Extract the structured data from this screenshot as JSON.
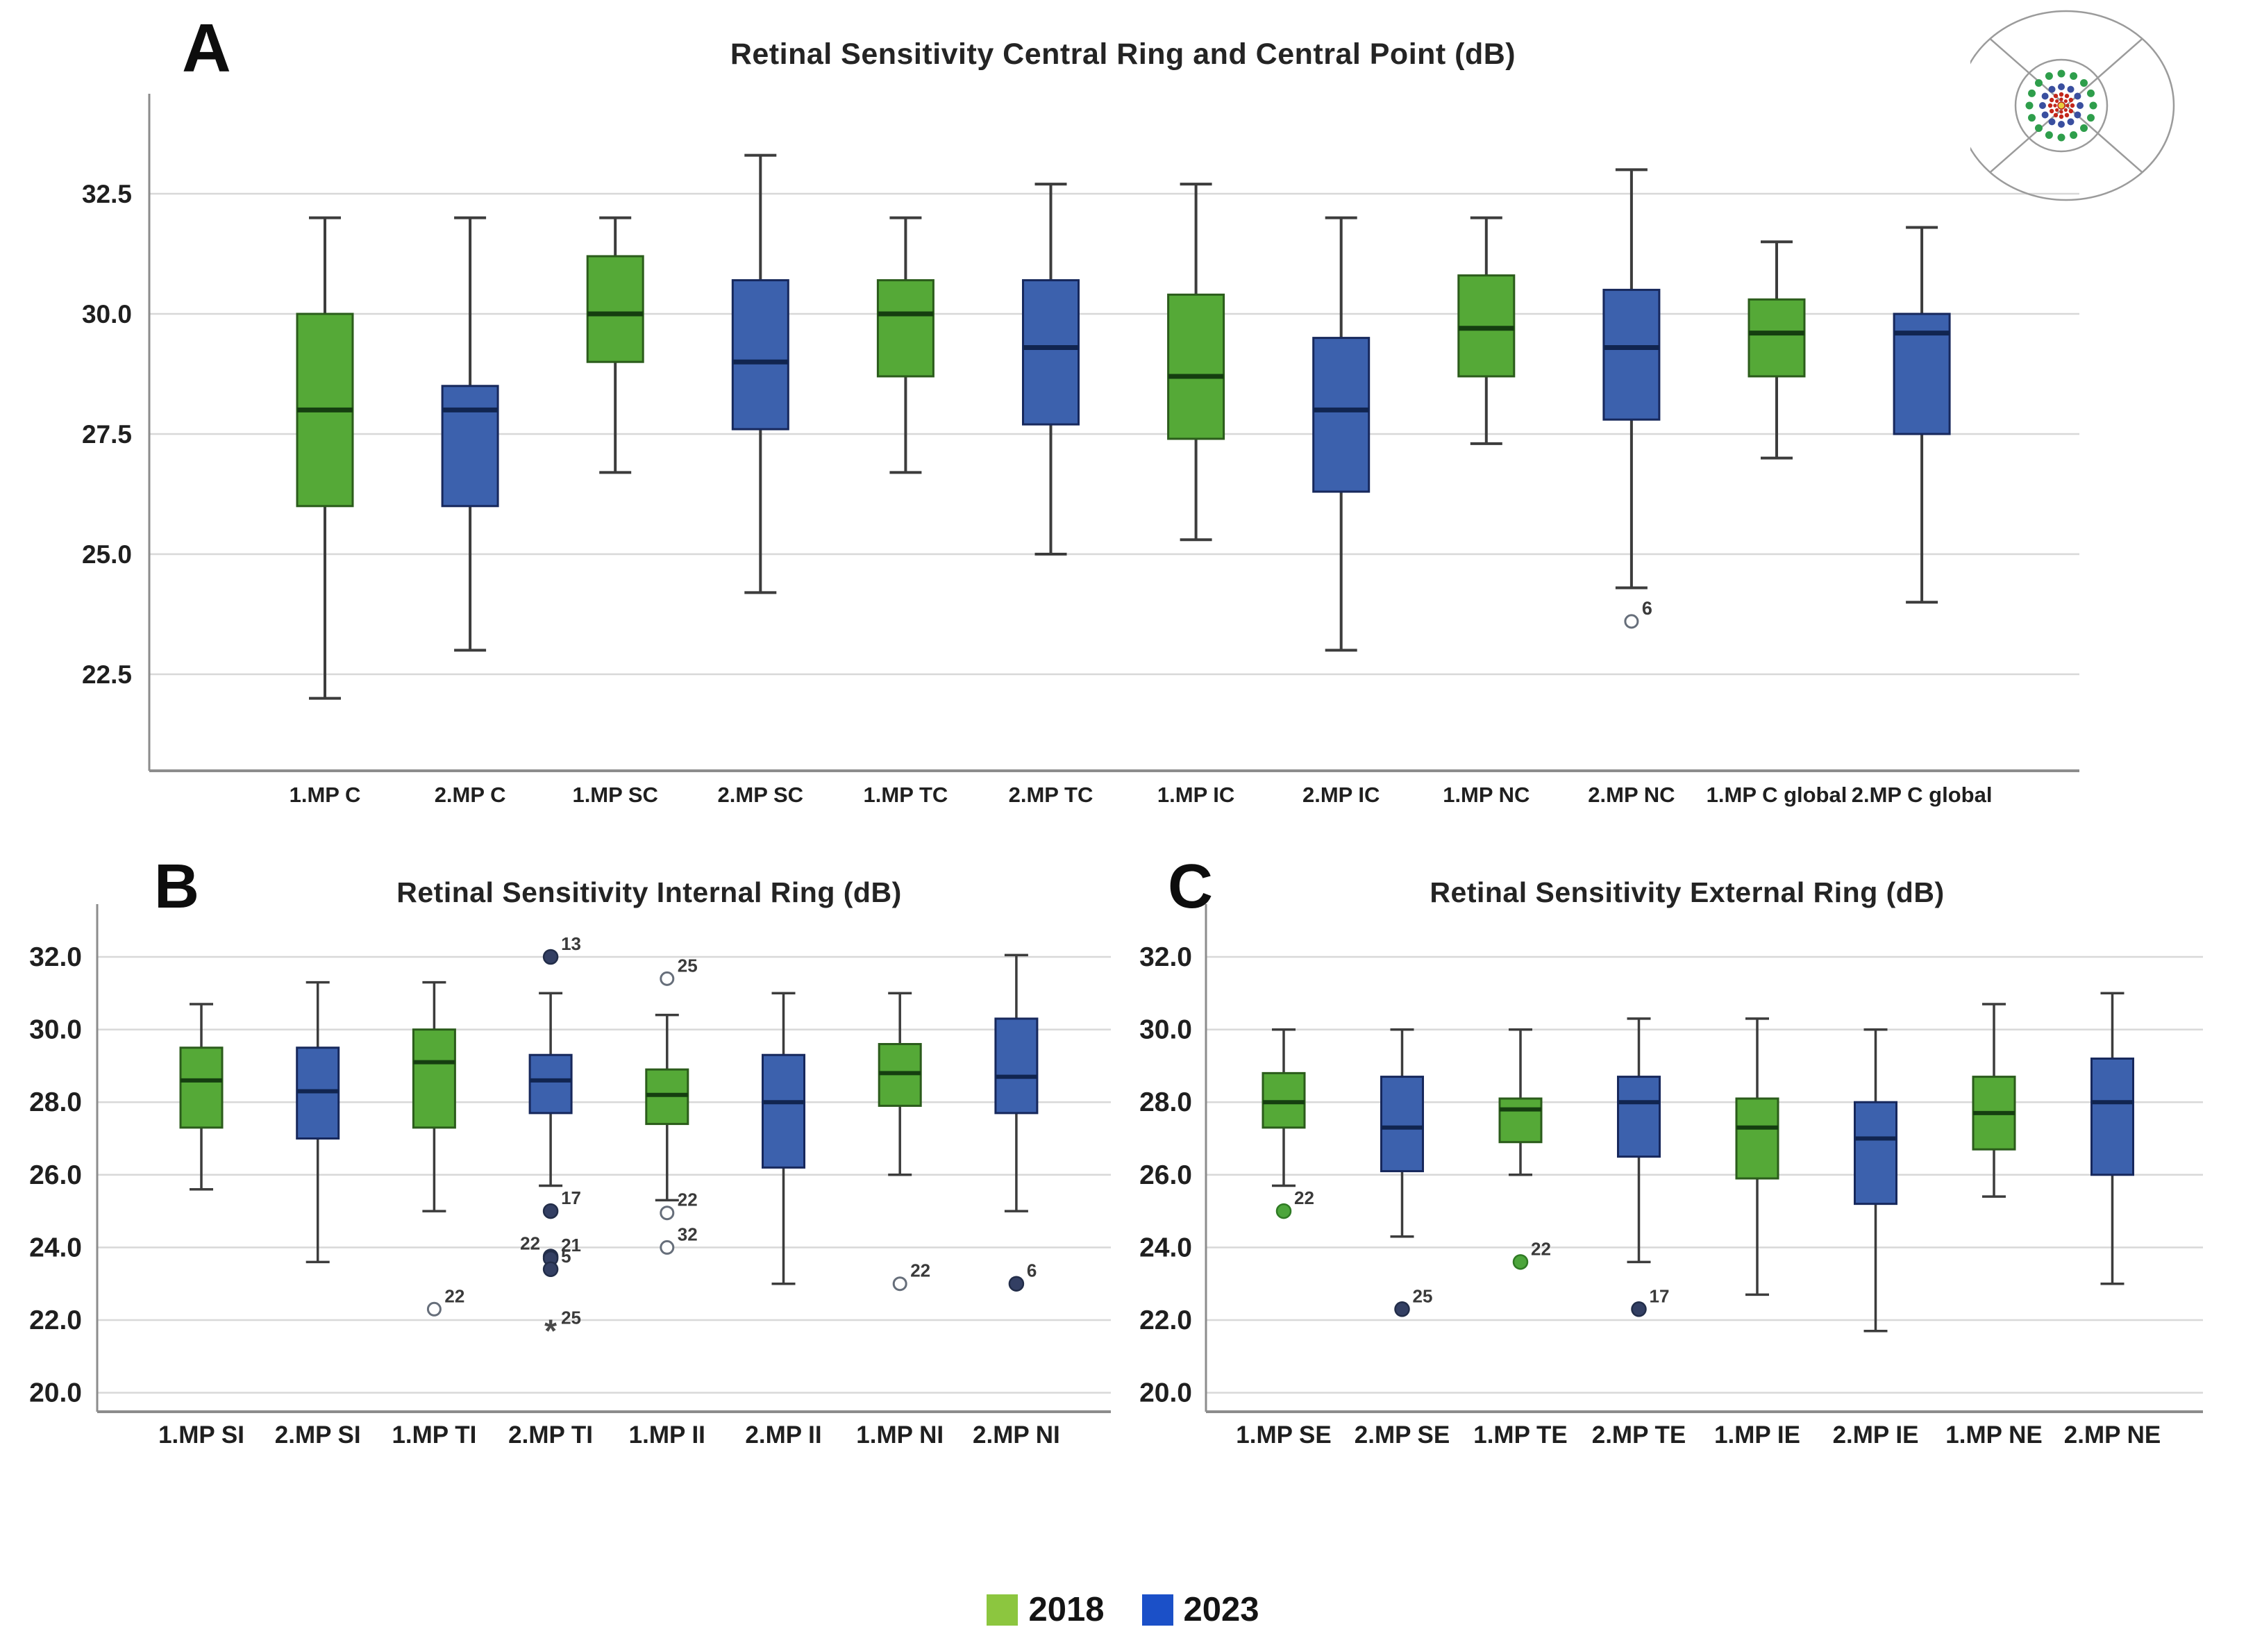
{
  "figure": {
    "background": "#ffffff"
  },
  "legend": {
    "position": "bottom-center",
    "items": [
      {
        "label": "2018",
        "color": "#8CC63F",
        "series_key": "2018"
      },
      {
        "label": "2023",
        "color": "#1B50C8",
        "series_key": "2023"
      }
    ]
  },
  "colors": {
    "series": {
      "2018": {
        "box_fill": "#55A937",
        "box_stroke": "#2B5C1B",
        "median": "#153E10",
        "outlier_fill": "#4CA53B",
        "outlier_stroke": "#2F7A24"
      },
      "2023": {
        "box_fill": "#3C61AD",
        "box_stroke": "#17285C",
        "median": "#112550",
        "outlier_fill": "#333F63",
        "outlier_stroke": "#222D49"
      }
    },
    "whisker": "#3C3C3C",
    "gridline": "#D8D8D8",
    "axis": "#8C8C8C",
    "tick_text": "#1F1F1F",
    "outlier_open_stroke": "#666E7A",
    "outlier_label": "#3A3A3A"
  },
  "inset": {
    "description": "macular-perimetry-stimulus-grid",
    "outline_color": "#9B9B9B",
    "grid_rings": [
      {
        "color": "#2E9E4B",
        "count": 16
      },
      {
        "color": "#3A4F9F",
        "count": 12
      },
      {
        "color": "#C3271B",
        "count": 12
      },
      {
        "color": "#C3271B",
        "count": 8
      }
    ],
    "center": {
      "color": "#E8CF3D",
      "ring_color": "#C3271B"
    }
  },
  "chart_data": [
    {
      "type": "boxplot",
      "panel_label": "A",
      "title": "Retinal Sensitivity Central Ring and Central Point (dB)",
      "y_unit": "dB",
      "ylim": [
        20.5,
        34.5
      ],
      "grid": true,
      "legend_groups": [
        "2018",
        "2023"
      ],
      "y_ticks": [
        {
          "value": 32.5,
          "label": "32.5"
        },
        {
          "value": 30.0,
          "label": "30.0"
        },
        {
          "value": 27.5,
          "label": "27.5"
        },
        {
          "value": 25.0,
          "label": "25.0"
        },
        {
          "value": 22.5,
          "label": "22.5"
        }
      ],
      "boxes": [
        {
          "category": "1.MP C",
          "group": "2018",
          "whisker_low": 22.0,
          "q1": 26.0,
          "median": 28.0,
          "q3": 30.0,
          "whisker_high": 32.0,
          "outliers": []
        },
        {
          "category": "2.MP C",
          "group": "2023",
          "whisker_low": 23.0,
          "q1": 26.0,
          "median": 28.0,
          "q3": 28.5,
          "whisker_high": 32.0,
          "outliers": []
        },
        {
          "category": "1.MP SC",
          "group": "2018",
          "whisker_low": 26.7,
          "q1": 29.0,
          "median": 30.0,
          "q3": 31.2,
          "whisker_high": 32.0,
          "outliers": []
        },
        {
          "category": "2.MP SC",
          "group": "2023",
          "whisker_low": 24.2,
          "q1": 27.6,
          "median": 29.0,
          "q3": 30.7,
          "whisker_high": 33.3,
          "outliers": []
        },
        {
          "category": "1.MP TC",
          "group": "2018",
          "whisker_low": 26.7,
          "q1": 28.7,
          "median": 30.0,
          "q3": 30.7,
          "whisker_high": 32.0,
          "outliers": []
        },
        {
          "category": "2.MP TC",
          "group": "2023",
          "whisker_low": 25.0,
          "q1": 27.7,
          "median": 29.3,
          "q3": 30.7,
          "whisker_high": 32.7,
          "outliers": []
        },
        {
          "category": "1.MP IC",
          "group": "2018",
          "whisker_low": 25.3,
          "q1": 27.4,
          "median": 28.7,
          "q3": 30.4,
          "whisker_high": 32.7,
          "outliers": []
        },
        {
          "category": "2.MP IC",
          "group": "2023",
          "whisker_low": 23.0,
          "q1": 26.3,
          "median": 28.0,
          "q3": 29.5,
          "whisker_high": 32.0,
          "outliers": []
        },
        {
          "category": "1.MP NC",
          "group": "2018",
          "whisker_low": 27.3,
          "q1": 28.7,
          "median": 29.7,
          "q3": 30.8,
          "whisker_high": 32.0,
          "outliers": []
        },
        {
          "category": "2.MP NC",
          "group": "2023",
          "whisker_low": 24.3,
          "q1": 27.8,
          "median": 29.3,
          "q3": 30.5,
          "whisker_high": 33.0,
          "outliers": [
            {
              "value": 23.6,
              "case": "6",
              "glyph": "open-circle",
              "side": "right"
            }
          ]
        },
        {
          "category": "1.MP C global",
          "group": "2018",
          "whisker_low": 27.0,
          "q1": 28.7,
          "median": 29.6,
          "q3": 30.3,
          "whisker_high": 31.5,
          "outliers": []
        },
        {
          "category": "2.MP C global",
          "group": "2023",
          "whisker_low": 24.0,
          "q1": 27.5,
          "median": 29.6,
          "q3": 30.0,
          "whisker_high": 31.8,
          "outliers": []
        }
      ]
    },
    {
      "type": "boxplot",
      "panel_label": "B",
      "title": "Retinal Sensitivity Internal Ring (dB)",
      "y_unit": "dB",
      "ylim": [
        19.4,
        33.0
      ],
      "grid": true,
      "legend_groups": [
        "2018",
        "2023"
      ],
      "y_ticks": [
        {
          "value": 32.0,
          "label": "32.0"
        },
        {
          "value": 30.0,
          "label": "30.0"
        },
        {
          "value": 28.0,
          "label": "28.0"
        },
        {
          "value": 26.0,
          "label": "26.0"
        },
        {
          "value": 24.0,
          "label": "24.0"
        },
        {
          "value": 22.0,
          "label": "22.0"
        },
        {
          "value": 20.0,
          "label": "20.0"
        }
      ],
      "boxes": [
        {
          "category": "1.MP SI",
          "group": "2018",
          "whisker_low": 25.6,
          "q1": 27.3,
          "median": 28.6,
          "q3": 29.5,
          "whisker_high": 30.7,
          "outliers": []
        },
        {
          "category": "2.MP SI",
          "group": "2023",
          "whisker_low": 23.6,
          "q1": 27.0,
          "median": 28.3,
          "q3": 29.5,
          "whisker_high": 31.3,
          "outliers": []
        },
        {
          "category": "1.MP TI",
          "group": "2018",
          "whisker_low": 25.0,
          "q1": 27.3,
          "median": 29.1,
          "q3": 30.0,
          "whisker_high": 31.3,
          "outliers": [
            {
              "value": 22.3,
              "case": "22",
              "glyph": "open-circle",
              "side": "right"
            }
          ]
        },
        {
          "category": "2.MP TI",
          "group": "2023",
          "whisker_low": 25.7,
          "q1": 27.7,
          "median": 28.6,
          "q3": 29.3,
          "whisker_high": 31.0,
          "outliers": [
            {
              "value": 32.0,
              "case": "13",
              "glyph": "filled-dot",
              "side": "right"
            },
            {
              "value": 25.0,
              "case": "17",
              "glyph": "filled-dot",
              "side": "right"
            },
            {
              "value": 23.75,
              "case": "22",
              "glyph": "filled-dot",
              "side": "left"
            },
            {
              "value": 23.7,
              "case": "21",
              "glyph": "filled-dot",
              "side": "right"
            },
            {
              "value": 23.4,
              "case": "5",
              "glyph": "filled-dot",
              "side": "right"
            },
            {
              "value": 21.7,
              "case": "25",
              "glyph": "star",
              "side": "right"
            }
          ]
        },
        {
          "category": "1.MP II",
          "group": "2018",
          "whisker_low": 25.3,
          "q1": 27.4,
          "median": 28.2,
          "q3": 28.9,
          "whisker_high": 30.4,
          "outliers": [
            {
              "value": 31.4,
              "case": "25",
              "glyph": "open-circle",
              "side": "right"
            },
            {
              "value": 24.95,
              "case": "22",
              "glyph": "open-circle",
              "side": "right"
            },
            {
              "value": 24.0,
              "case": "32",
              "glyph": "open-circle",
              "side": "right"
            }
          ]
        },
        {
          "category": "2.MP II",
          "group": "2023",
          "whisker_low": 23.0,
          "q1": 26.2,
          "median": 28.0,
          "q3": 29.3,
          "whisker_high": 31.0,
          "outliers": []
        },
        {
          "category": "1.MP NI",
          "group": "2018",
          "whisker_low": 26.0,
          "q1": 27.9,
          "median": 28.8,
          "q3": 29.6,
          "whisker_high": 31.0,
          "outliers": [
            {
              "value": 23.0,
              "case": "22",
              "glyph": "open-circle",
              "side": "right"
            }
          ]
        },
        {
          "category": "2.MP NI",
          "group": "2023",
          "whisker_low": 25.0,
          "q1": 27.7,
          "median": 28.7,
          "q3": 30.3,
          "whisker_high": 32.05,
          "outliers": [
            {
              "value": 23.0,
              "case": "6",
              "glyph": "filled-dot",
              "side": "right"
            }
          ]
        }
      ]
    },
    {
      "type": "boxplot",
      "panel_label": "C",
      "title": "Retinal Sensitivity External Ring (dB)",
      "y_unit": "dB",
      "ylim": [
        19.4,
        33.0
      ],
      "grid": true,
      "legend_groups": [
        "2018",
        "2023"
      ],
      "y_ticks": [
        {
          "value": 32.0,
          "label": "32.0"
        },
        {
          "value": 30.0,
          "label": "30.0"
        },
        {
          "value": 28.0,
          "label": "28.0"
        },
        {
          "value": 26.0,
          "label": "26.0"
        },
        {
          "value": 24.0,
          "label": "24.0"
        },
        {
          "value": 22.0,
          "label": "22.0"
        },
        {
          "value": 20.0,
          "label": "20.0"
        }
      ],
      "boxes": [
        {
          "category": "1.MP SE",
          "group": "2018",
          "whisker_low": 25.7,
          "q1": 27.3,
          "median": 28.0,
          "q3": 28.8,
          "whisker_high": 30.0,
          "outliers": [
            {
              "value": 25.0,
              "case": "22",
              "glyph": "filled-dot",
              "side": "right"
            }
          ]
        },
        {
          "category": "2.MP SE",
          "group": "2023",
          "whisker_low": 24.3,
          "q1": 26.1,
          "median": 27.3,
          "q3": 28.7,
          "whisker_high": 30.0,
          "outliers": [
            {
              "value": 22.3,
              "case": "25",
              "glyph": "filled-dot",
              "side": "right"
            }
          ]
        },
        {
          "category": "1.MP TE",
          "group": "2018",
          "whisker_low": 26.0,
          "q1": 26.9,
          "median": 27.8,
          "q3": 28.1,
          "whisker_high": 30.0,
          "outliers": [
            {
              "value": 23.6,
              "case": "22",
              "glyph": "filled-dot",
              "side": "right"
            }
          ]
        },
        {
          "category": "2.MP TE",
          "group": "2023",
          "whisker_low": 23.6,
          "q1": 26.5,
          "median": 28.0,
          "q3": 28.7,
          "whisker_high": 30.3,
          "outliers": [
            {
              "value": 22.3,
              "case": "17",
              "glyph": "filled-dot",
              "side": "right"
            }
          ]
        },
        {
          "category": "1.MP IE",
          "group": "2018",
          "whisker_low": 22.7,
          "q1": 25.9,
          "median": 27.3,
          "q3": 28.1,
          "whisker_high": 30.3,
          "outliers": []
        },
        {
          "category": "2.MP IE",
          "group": "2023",
          "whisker_low": 21.7,
          "q1": 25.2,
          "median": 27.0,
          "q3": 28.0,
          "whisker_high": 30.0,
          "outliers": []
        },
        {
          "category": "1.MP NE",
          "group": "2018",
          "whisker_low": 25.4,
          "q1": 26.7,
          "median": 27.7,
          "q3": 28.7,
          "whisker_high": 30.7,
          "outliers": []
        },
        {
          "category": "2.MP NE",
          "group": "2023",
          "whisker_low": 23.0,
          "q1": 26.0,
          "median": 28.0,
          "q3": 29.2,
          "whisker_high": 31.0,
          "outliers": []
        }
      ]
    }
  ]
}
